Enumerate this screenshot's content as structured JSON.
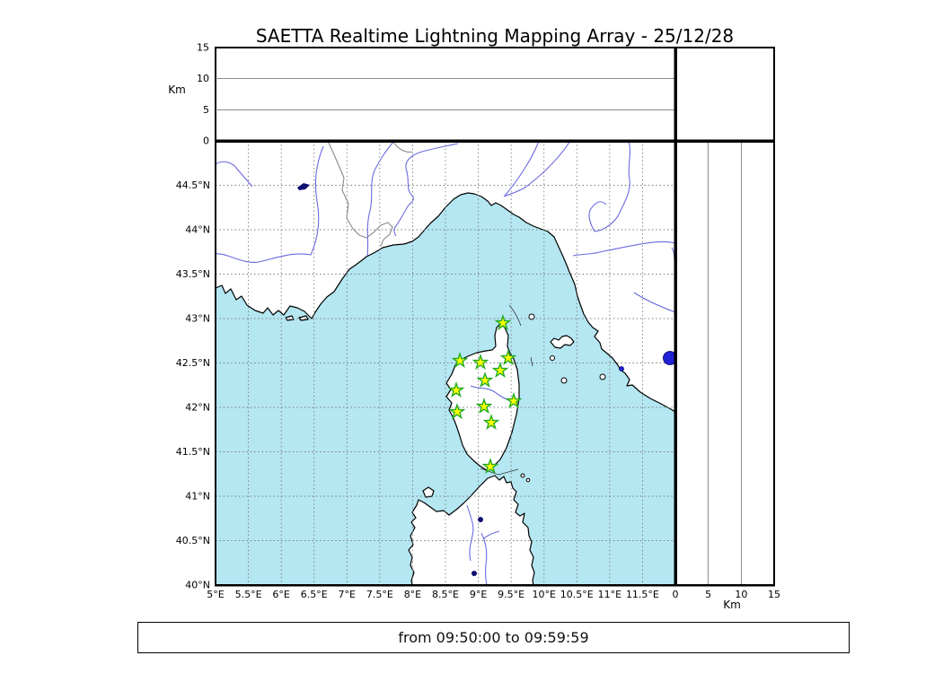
{
  "title": "SAETTA Realtime Lightning Mapping Array - 25/12/28",
  "footer": "from 09:50:00 to 09:59:59",
  "colors": {
    "sea": "#b4e7f2",
    "land": "#ffffff",
    "coast": "#000000",
    "river": "#6b6be0",
    "country_border": "#8a8a8a",
    "map_grid": "#7a7a7a",
    "panel_grid": "#8c8c8c",
    "star_fill": "#ffff00",
    "star_stroke": "#22aa22",
    "lake_bright": "#2121d4",
    "lake_dark": "#0d0d70",
    "frame": "#000000"
  },
  "map_axes": {
    "lon_min": 5,
    "lon_max": 12,
    "lat_min": 40,
    "lat_max": 45,
    "grid_step_deg": 0.5,
    "lon_ticks": [
      {
        "v": 5,
        "label": "5°E"
      },
      {
        "v": 5.5,
        "label": "5.5°E"
      },
      {
        "v": 6,
        "label": "6°E"
      },
      {
        "v": 6.5,
        "label": "6.5°E"
      },
      {
        "v": 7,
        "label": "7°E"
      },
      {
        "v": 7.5,
        "label": "7.5°E"
      },
      {
        "v": 8,
        "label": "8°E"
      },
      {
        "v": 8.5,
        "label": "8.5°E"
      },
      {
        "v": 9,
        "label": "9°E"
      },
      {
        "v": 9.5,
        "label": "9.5°E"
      },
      {
        "v": 10,
        "label": "10°E"
      },
      {
        "v": 10.5,
        "label": "10.5°E"
      },
      {
        "v": 11,
        "label": "11°E"
      },
      {
        "v": 11.5,
        "label": "11.5°E"
      }
    ],
    "lat_ticks": [
      {
        "v": 40,
        "label": "40°N"
      },
      {
        "v": 40.5,
        "label": "40.5°N"
      },
      {
        "v": 41,
        "label": "41°N"
      },
      {
        "v": 41.5,
        "label": "41.5°N"
      },
      {
        "v": 42,
        "label": "42°N"
      },
      {
        "v": 42.5,
        "label": "42.5°N"
      },
      {
        "v": 43,
        "label": "43°N"
      },
      {
        "v": 43.5,
        "label": "43.5°N"
      },
      {
        "v": 44,
        "label": "44°N"
      },
      {
        "v": 44.5,
        "label": "44.5°N"
      }
    ]
  },
  "altitude_axes": {
    "label": "Km",
    "max_km": 15,
    "grid_km": [
      5,
      10
    ],
    "ticks": [
      {
        "v": 0,
        "label": "0"
      },
      {
        "v": 5,
        "label": "5"
      },
      {
        "v": 10,
        "label": "10"
      },
      {
        "v": 15,
        "label": "15"
      }
    ]
  },
  "stations_lon_lat_deg": [
    [
      9.375,
      42.949
    ],
    [
      8.719,
      42.525
    ],
    [
      9.033,
      42.505
    ],
    [
      9.457,
      42.556
    ],
    [
      9.334,
      42.414
    ],
    [
      9.101,
      42.303
    ],
    [
      8.664,
      42.192
    ],
    [
      9.539,
      42.071
    ],
    [
      9.088,
      42.01
    ],
    [
      8.678,
      41.949
    ],
    [
      9.197,
      41.828
    ],
    [
      9.183,
      41.333
    ]
  ],
  "chart_data": {
    "type": "scatter",
    "title": "SAETTA Realtime Lightning Mapping Array - 25/12/28",
    "time_window": "from 09:50:00 to 09:59:59",
    "map_extent": {
      "lon_deg_e": [
        5,
        12
      ],
      "lat_deg_n": [
        40,
        45
      ]
    },
    "altitude_range_km": [
      0,
      15
    ],
    "grid": "on",
    "lightning_sources": [],
    "stations_lon_lat_deg": [
      [
        9.375,
        42.949
      ],
      [
        8.719,
        42.525
      ],
      [
        9.033,
        42.505
      ],
      [
        9.457,
        42.556
      ],
      [
        9.334,
        42.414
      ],
      [
        9.101,
        42.303
      ],
      [
        8.664,
        42.192
      ],
      [
        9.539,
        42.071
      ],
      [
        9.088,
        42.01
      ],
      [
        8.678,
        41.949
      ],
      [
        9.197,
        41.828
      ],
      [
        9.183,
        41.333
      ]
    ],
    "panels": [
      {
        "name": "altitude-vs-longitude",
        "x_range": [
          5,
          12
        ],
        "y_range_km": [
          0,
          15
        ],
        "points": []
      },
      {
        "name": "map",
        "points": "stations only"
      },
      {
        "name": "altitude-vs-latitude",
        "x_range_km": [
          0,
          15
        ],
        "y_range": [
          40,
          45
        ],
        "points": []
      },
      {
        "name": "source-histogram",
        "points": []
      }
    ]
  }
}
